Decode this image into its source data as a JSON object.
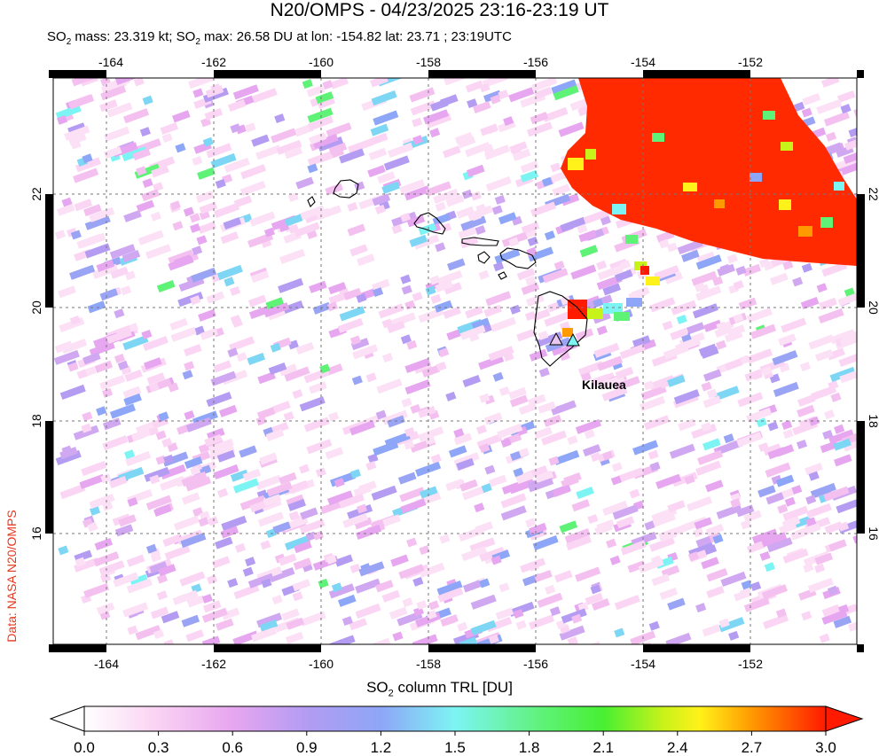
{
  "title": "N20/OMPS - 04/23/2025 23:16-23:19 UT",
  "subtitle": {
    "p1": "SO",
    "p1sub": "2",
    "p2": " mass: 23.319 kt; SO",
    "p2sub": "2",
    "p3": " max: 26.58 DU at lon: -154.82 lat: 23.71 ; 23:19UTC"
  },
  "credit": "Data: NASA N20/OMPS",
  "map": {
    "lon_range": [
      -165,
      -150
    ],
    "lat_range": [
      14,
      24
    ],
    "lon_ticks": [
      "-164",
      "-162",
      "-160",
      "-158",
      "-156",
      "-154",
      "-152"
    ],
    "lat_ticks": [
      "16",
      "18",
      "20",
      "22"
    ],
    "volcano_label": "Kilauea",
    "plume_color": "#ff2a00"
  },
  "colorbar": {
    "title_a": "SO",
    "title_sub": "2",
    "title_b": " column TRL [DU]",
    "ticks": [
      "0.0",
      "0.3",
      "0.6",
      "0.9",
      "1.2",
      "1.5",
      "1.8",
      "2.1",
      "2.4",
      "2.7",
      "3.0"
    ],
    "stops": [
      "#ffffff",
      "#fbd6f4",
      "#e7a6f0",
      "#b39cf2",
      "#8ea6f7",
      "#7df4f4",
      "#5ef276",
      "#48ef32",
      "#c7f21a",
      "#fff21a",
      "#ff9a00",
      "#ff1a00"
    ]
  }
}
